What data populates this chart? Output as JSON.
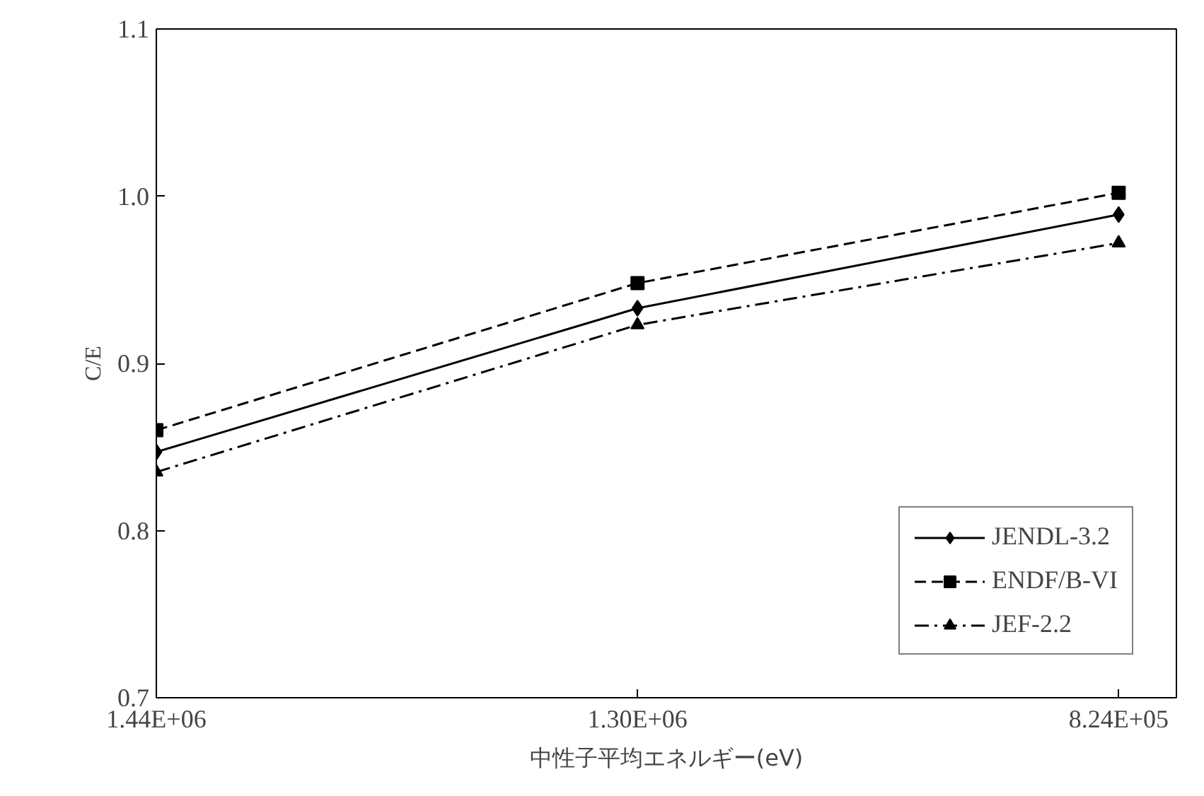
{
  "chart_data": {
    "type": "line",
    "xlabel": "中性子平均エネルギー(eV)",
    "ylabel": "C/E",
    "categories": [
      "1.44E+06",
      "1.30E+06",
      "8.24E+05"
    ],
    "ylim": [
      0.7,
      1.1
    ],
    "yticks": [
      0.7,
      0.8,
      0.9,
      {
        "value": 1.0,
        "label": "1.0"
      },
      1.1
    ],
    "grid": false,
    "legend": "bottom right",
    "series": [
      {
        "name": "JENDL-3.2",
        "color": "#000000",
        "values": [
          0.847,
          0.933,
          0.989
        ],
        "marker": "diamond",
        "line_style": "solid"
      },
      {
        "name": "ENDF/B-VI",
        "color": "#000000",
        "values": [
          0.86,
          0.948,
          1.002
        ],
        "marker": "square",
        "line_style": "dashed"
      },
      {
        "name": "JEF-2.2",
        "color": "#000000",
        "values": [
          0.835,
          0.923,
          0.972
        ],
        "marker": "triangle",
        "line_style": "dashdot"
      }
    ]
  }
}
